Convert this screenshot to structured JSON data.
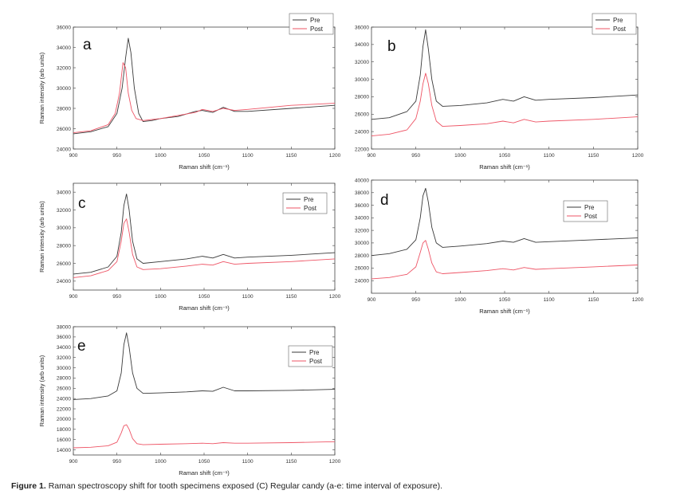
{
  "caption": {
    "label": "Figure 1.",
    "text": "Raman spectroscopy shift for tooth specimens exposed (C) Regular candy (a-e: time interval of exposure)."
  },
  "colors": {
    "pre": "#3a3a3a",
    "post": "#ee5566"
  },
  "chart_data": [
    {
      "panel": "a",
      "type": "line",
      "xlabel": "Raman shift (cm⁻¹)",
      "ylabel": "Raman intensity (arb units)",
      "xlim": [
        900,
        1200
      ],
      "ylim": [
        24000,
        36000
      ],
      "xticks": [
        900,
        950,
        1000,
        1050,
        1100,
        1150,
        1200
      ],
      "yticks": [
        24000,
        26000,
        28000,
        30000,
        32000,
        34000,
        36000
      ],
      "legend": "top-right",
      "series": [
        {
          "name": "Pre",
          "x": [
            900,
            920,
            940,
            950,
            956,
            960,
            963,
            966,
            970,
            975,
            980,
            990,
            1000,
            1020,
            1040,
            1048,
            1060,
            1072,
            1085,
            1100,
            1150,
            1200
          ],
          "y": [
            25500,
            25700,
            26200,
            27500,
            30000,
            33000,
            34900,
            33500,
            30000,
            27500,
            26700,
            26800,
            27000,
            27200,
            27700,
            27800,
            27600,
            28100,
            27700,
            27700,
            28000,
            28300
          ]
        },
        {
          "name": "Post",
          "x": [
            900,
            920,
            940,
            948,
            953,
            957,
            960,
            963,
            967,
            972,
            980,
            990,
            1000,
            1020,
            1040,
            1048,
            1060,
            1072,
            1085,
            1100,
            1150,
            1200
          ],
          "y": [
            25600,
            25800,
            26400,
            27500,
            29500,
            32500,
            32000,
            29500,
            27800,
            27000,
            26800,
            26900,
            27000,
            27300,
            27600,
            27900,
            27700,
            28000,
            27800,
            27900,
            28300,
            28500
          ]
        }
      ]
    },
    {
      "panel": "b",
      "type": "line",
      "xlabel": "Raman shift (cm⁻¹)",
      "ylabel": "",
      "xlim": [
        900,
        1200
      ],
      "ylim": [
        22000,
        36000
      ],
      "xticks": [
        900,
        950,
        1000,
        1050,
        1100,
        1150,
        1200
      ],
      "yticks": [
        22000,
        24000,
        26000,
        28000,
        30000,
        32000,
        34000,
        36000
      ],
      "legend": "top-right",
      "series": [
        {
          "name": "Pre",
          "x": [
            900,
            920,
            940,
            950,
            955,
            958,
            961,
            964,
            968,
            973,
            980,
            1000,
            1030,
            1048,
            1060,
            1072,
            1085,
            1100,
            1150,
            1200
          ],
          "y": [
            25400,
            25600,
            26300,
            27500,
            30500,
            33800,
            35700,
            33500,
            30000,
            27500,
            26900,
            27000,
            27300,
            27700,
            27500,
            28000,
            27600,
            27700,
            27900,
            28200
          ]
        },
        {
          "name": "Post",
          "x": [
            900,
            920,
            940,
            950,
            955,
            958,
            961,
            964,
            968,
            973,
            980,
            1000,
            1030,
            1048,
            1060,
            1072,
            1085,
            1100,
            1150,
            1200
          ],
          "y": [
            23500,
            23700,
            24200,
            25500,
            27500,
            29500,
            30700,
            29500,
            27000,
            25200,
            24600,
            24700,
            24900,
            25200,
            25000,
            25400,
            25100,
            25200,
            25400,
            25700
          ]
        }
      ]
    },
    {
      "panel": "c",
      "type": "line",
      "xlabel": "Raman shift (cm⁻¹)",
      "ylabel": "Raman intensity (arb units)",
      "xlim": [
        900,
        1200
      ],
      "ylim": [
        23000,
        35000
      ],
      "xticks": [
        900,
        950,
        1000,
        1050,
        1100,
        1150,
        1200
      ],
      "yticks": [
        24000,
        26000,
        28000,
        30000,
        32000,
        34000
      ],
      "legend": "top-right",
      "series": [
        {
          "name": "Pre",
          "x": [
            900,
            920,
            940,
            950,
            955,
            958,
            961,
            964,
            968,
            973,
            980,
            1000,
            1030,
            1048,
            1060,
            1072,
            1085,
            1100,
            1150,
            1200
          ],
          "y": [
            24800,
            25000,
            25600,
            26800,
            29500,
            32500,
            33800,
            32000,
            28500,
            26500,
            26000,
            26200,
            26500,
            26800,
            26600,
            27000,
            26600,
            26700,
            26900,
            27200
          ]
        },
        {
          "name": "Post",
          "x": [
            900,
            920,
            940,
            950,
            955,
            958,
            961,
            964,
            968,
            973,
            980,
            1000,
            1030,
            1048,
            1060,
            1072,
            1085,
            1100,
            1150,
            1200
          ],
          "y": [
            24400,
            24600,
            25200,
            26200,
            28500,
            30500,
            31000,
            29500,
            27000,
            25600,
            25300,
            25400,
            25700,
            25900,
            25800,
            26200,
            25900,
            26000,
            26200,
            26500
          ]
        }
      ]
    },
    {
      "panel": "d",
      "type": "line",
      "xlabel": "Raman shift (cm⁻¹)",
      "ylabel": "",
      "xlim": [
        900,
        1200
      ],
      "ylim": [
        22000,
        40000
      ],
      "xticks": [
        900,
        950,
        1000,
        1050,
        1100,
        1150,
        1200
      ],
      "yticks": [
        24000,
        26000,
        28000,
        30000,
        32000,
        34000,
        36000,
        38000,
        40000
      ],
      "legend": "top-right",
      "series": [
        {
          "name": "Pre",
          "x": [
            900,
            920,
            940,
            950,
            955,
            958,
            961,
            964,
            968,
            973,
            980,
            1000,
            1030,
            1048,
            1060,
            1072,
            1085,
            1100,
            1150,
            1200
          ],
          "y": [
            28000,
            28300,
            29000,
            30500,
            34000,
            37500,
            38700,
            36500,
            32500,
            30000,
            29300,
            29500,
            29900,
            30300,
            30100,
            30700,
            30100,
            30200,
            30500,
            30800
          ]
        },
        {
          "name": "Post",
          "x": [
            900,
            920,
            940,
            950,
            955,
            958,
            961,
            964,
            968,
            973,
            980,
            1000,
            1030,
            1048,
            1060,
            1072,
            1085,
            1100,
            1150,
            1200
          ],
          "y": [
            24300,
            24500,
            25000,
            26200,
            28500,
            30000,
            30400,
            29000,
            26800,
            25400,
            25100,
            25300,
            25600,
            25900,
            25700,
            26100,
            25800,
            25900,
            26200,
            26500
          ]
        }
      ]
    },
    {
      "panel": "e",
      "type": "line",
      "xlabel": "Raman shift (cm⁻¹)",
      "ylabel": "Raman intensity (arb units)",
      "xlim": [
        900,
        1200
      ],
      "ylim": [
        13000,
        38000
      ],
      "xticks": [
        900,
        950,
        1000,
        1050,
        1100,
        1150,
        1200
      ],
      "yticks": [
        14000,
        16000,
        18000,
        20000,
        22000,
        24000,
        26000,
        28000,
        30000,
        32000,
        34000,
        36000,
        38000
      ],
      "legend": "top-right",
      "series": [
        {
          "name": "Pre",
          "x": [
            900,
            920,
            940,
            950,
            955,
            958,
            961,
            964,
            968,
            973,
            980,
            1000,
            1030,
            1048,
            1060,
            1072,
            1085,
            1100,
            1150,
            1200
          ],
          "y": [
            23800,
            24000,
            24500,
            25500,
            29000,
            34500,
            36800,
            34000,
            29000,
            26000,
            25000,
            25100,
            25300,
            25500,
            25400,
            26200,
            25500,
            25500,
            25600,
            25800
          ]
        },
        {
          "name": "Post",
          "x": [
            900,
            920,
            940,
            950,
            955,
            958,
            961,
            964,
            968,
            973,
            980,
            1000,
            1030,
            1048,
            1060,
            1072,
            1085,
            1100,
            1150,
            1200
          ],
          "y": [
            14400,
            14500,
            14800,
            15500,
            17300,
            18700,
            18900,
            18000,
            16200,
            15200,
            15000,
            15100,
            15200,
            15300,
            15200,
            15400,
            15300,
            15300,
            15400,
            15600
          ]
        }
      ]
    }
  ]
}
